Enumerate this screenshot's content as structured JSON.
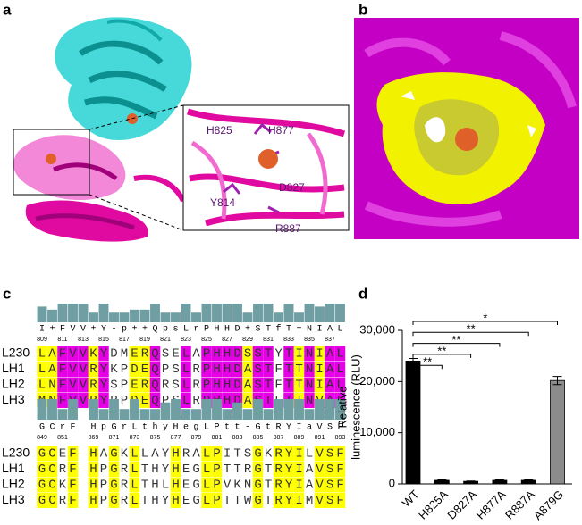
{
  "panels": {
    "a": "a",
    "b": "b",
    "c": "c",
    "d": "d"
  },
  "residues": [
    "H825",
    "H877",
    "D827",
    "Y814",
    "R887"
  ],
  "alignment": {
    "blocks": [
      {
        "consensus": "I+FVV+Y-p++QpsLrPHHD+STfT+NIAL",
        "positions": [
          809,
          811,
          813,
          815,
          817,
          819,
          821,
          823,
          825,
          827,
          829,
          831,
          833,
          835,
          837
        ],
        "identical_color": "#e600e6",
        "similar_color": "#ffff00",
        "rows": [
          {
            "name": "L230",
            "sequence": "LAFVVKYDMERQSELAPHHDSSTYTINIAL"
          },
          {
            "name": "LH1",
            "sequence": "LAFVVRYKPDEQPSLRPHHDASTFTTNIAL"
          },
          {
            "name": "LH2",
            "sequence": "LNFVVRYSPERQRSLRPHHDASTFTTNIAL"
          },
          {
            "name": "LH3",
            "sequence": "MNFVVRYRPDEQPSLRPHHDASTFTTNVAL"
          }
        ]
      },
      {
        "consensus": "GCrF HpGrLthyHegLPtt-GtRYIaVSF",
        "positions": [
          849,
          851,
          869,
          871,
          873,
          875,
          877,
          879,
          881,
          883,
          885,
          887,
          889,
          891,
          893
        ],
        "identical_color": "#ffff00",
        "similar_color": "#e600e6",
        "rows": [
          {
            "name": "L230",
            "sequence": "GCEF HAGKLLAYHRALPITSGKRYILVSF"
          },
          {
            "name": "LH1",
            "sequence": "GCRF HPGRLTHYHEGLPTTRGTRYIAVSF"
          },
          {
            "name": "LH2",
            "sequence": "GCKF HPGRLTHLHEGLPVKNGTRYIAVSF"
          },
          {
            "name": "LH3",
            "sequence": "GCRF HPGRLTHYHEGLPTTWGTRYIMVSF"
          }
        ]
      }
    ]
  },
  "chart_data": {
    "type": "bar",
    "categories": [
      "WT",
      "H825A",
      "D827A",
      "H877A",
      "R887A",
      "A879G"
    ],
    "values": [
      24000,
      700,
      500,
      700,
      700,
      20200
    ],
    "errors": [
      500,
      80,
      60,
      80,
      80,
      800
    ],
    "colors": [
      "#000000",
      "#000000",
      "#000000",
      "#000000",
      "#000000",
      "#8c8c8c"
    ],
    "ylabel": [
      "Relative",
      "luminescence (RLU)"
    ],
    "ylim": [
      0,
      30000
    ],
    "yticks": [
      0,
      {
        "value": 10000,
        "label": "10,000"
      },
      {
        "value": 20000,
        "label": "20,000"
      },
      {
        "value": 30000,
        "label": "30,000"
      }
    ],
    "significance": [
      {
        "label": "*",
        "vs": "A879G"
      },
      {
        "label": "**",
        "vs": "R887A"
      },
      {
        "label": "**",
        "vs": "H877A"
      },
      {
        "label": "**",
        "vs": "D827A"
      },
      {
        "label": "**",
        "vs": "H825A"
      }
    ]
  }
}
